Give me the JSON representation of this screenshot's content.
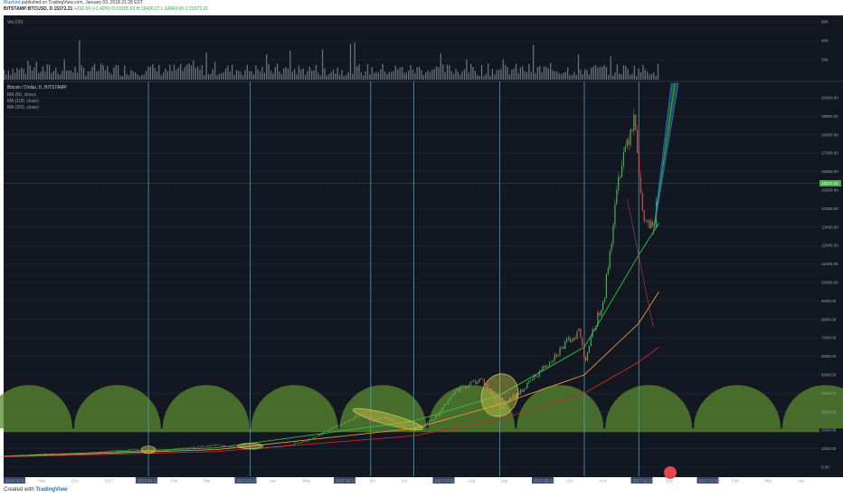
{
  "header": {
    "author": "Bluebird",
    "published_text": "published on TradingView.com, January 03, 2018 21:28 EST",
    "symbol": "BITSTAMP:BTCUSD, D",
    "last_price": "15372.21",
    "change": "+216.59 (+1.43%)",
    "ohlc": "O:15155.63 H:15430.27 L:14969.69 C:15372.21"
  },
  "footer": {
    "created_with": "Created with",
    "brand": "TradingView"
  },
  "legend": {
    "volume": "Vol (20)",
    "main": "Bitcoin / Dollar, D, BITSTAMP",
    "ma50": "MA (50, close)",
    "ma100": "MA (100, close)",
    "ma200": "MA (200, close)"
  },
  "colors": {
    "background": "#131722",
    "grid": "#22283a",
    "up": "#4caf50",
    "down": "#e0484d",
    "volume": "#6d7078",
    "ma50": "#31c443",
    "ma100": "#e8953a",
    "ma200": "#c42b2b",
    "semicircles": "#5a8a2f",
    "vline": "#4aa3a9"
  },
  "chart_data": {
    "type": "candlestick",
    "price_axis": [
      "20000.00",
      "19000.00",
      "18000.00",
      "17000.00",
      "16000.00",
      "15000.00",
      "14000.00",
      "13000.00",
      "12000.00",
      "11000.00",
      "10000.00",
      "9000.00",
      "8000.00",
      "7000.00",
      "6000.00",
      "5000.00",
      "4000.00",
      "3000.00",
      "2000.00",
      "1000.00",
      "0.00"
    ],
    "ylim": [
      0,
      20000
    ],
    "current_price_label": "15372.21",
    "volume_axis": [
      "60K",
      "40K",
      "20K"
    ],
    "time_axis": [
      "2016-10-03",
      "Nov",
      "Dec",
      "2017",
      "2017-01-12",
      "Feb",
      "Mar",
      "2017-03-24",
      "Apr",
      "May",
      "2017-06-16",
      "Jun",
      "Jul",
      "2017-07-16",
      "Aug",
      "Sep",
      "2017-09-14",
      "Oct",
      "Nov",
      "2017-11-12",
      "Dec",
      "2017-12-20",
      "Feb",
      "Mar",
      "Apr"
    ],
    "price_path": [
      [
        "2016-10-03",
        610
      ],
      [
        "2016-11-01",
        720
      ],
      [
        "2016-12-01",
        760
      ],
      [
        "2017-01-01",
        980
      ],
      [
        "2017-01-12",
        800
      ],
      [
        "2017-02-01",
        1000
      ],
      [
        "2017-03-01",
        1200
      ],
      [
        "2017-03-24",
        950
      ],
      [
        "2017-04-15",
        1150
      ],
      [
        "2017-05-01",
        1400
      ],
      [
        "2017-05-25",
        2300
      ],
      [
        "2017-06-10",
        2900
      ],
      [
        "2017-06-16",
        2500
      ],
      [
        "2017-06-25",
        2700
      ],
      [
        "2017-07-16",
        1950
      ],
      [
        "2017-08-01",
        2800
      ],
      [
        "2017-08-15",
        4200
      ],
      [
        "2017-09-01",
        4800
      ],
      [
        "2017-09-14",
        3200
      ],
      [
        "2017-10-01",
        4300
      ],
      [
        "2017-10-20",
        5900
      ],
      [
        "2017-11-08",
        7400
      ],
      [
        "2017-11-12",
        5800
      ],
      [
        "2017-11-26",
        9500
      ],
      [
        "2017-12-07",
        16500
      ],
      [
        "2017-12-17",
        19300
      ],
      [
        "2017-12-22",
        13500
      ],
      [
        "2017-12-30",
        12800
      ],
      [
        "2018-01-03",
        15372
      ]
    ],
    "moving_averages": [
      {
        "name": "MA (50, close)",
        "points": [
          [
            "2016-10-03",
            600
          ],
          [
            "2017-03-01",
            1050
          ],
          [
            "2017-07-16",
            2500
          ],
          [
            "2017-09-14",
            3900
          ],
          [
            "2017-11-12",
            6500
          ],
          [
            "2017-12-20",
            11500
          ],
          [
            "2018-01-03",
            13200
          ]
        ]
      },
      {
        "name": "MA (100, close)",
        "points": [
          [
            "2016-10-03",
            580
          ],
          [
            "2017-03-01",
            950
          ],
          [
            "2017-07-16",
            2100
          ],
          [
            "2017-09-14",
            3400
          ],
          [
            "2017-11-12",
            5000
          ],
          [
            "2017-12-20",
            7800
          ],
          [
            "2018-01-03",
            9500
          ]
        ]
      },
      {
        "name": "MA (200, close)",
        "points": [
          [
            "2016-10-03",
            560
          ],
          [
            "2017-03-01",
            850
          ],
          [
            "2017-07-16",
            1700
          ],
          [
            "2017-09-14",
            2600
          ],
          [
            "2017-11-12",
            4000
          ],
          [
            "2017-12-20",
            5700
          ],
          [
            "2018-01-03",
            6500
          ]
        ]
      }
    ],
    "vertical_markers": [
      "2017-01-12",
      "2017-03-24",
      "2017-06-16",
      "2017-07-16",
      "2017-09-14",
      "2017-11-12",
      "2017-12-20"
    ],
    "semicircle_band": {
      "base": 2100,
      "top": 4450
    },
    "highlight_ellipses": [
      {
        "center": [
          "2017-01-12",
          950
        ]
      },
      {
        "center": [
          "2017-03-24",
          1150
        ]
      },
      {
        "center": [
          "2017-06-28",
          2600
        ]
      },
      {
        "center": [
          "2017-09-14",
          3900
        ]
      }
    ],
    "grid": true
  }
}
